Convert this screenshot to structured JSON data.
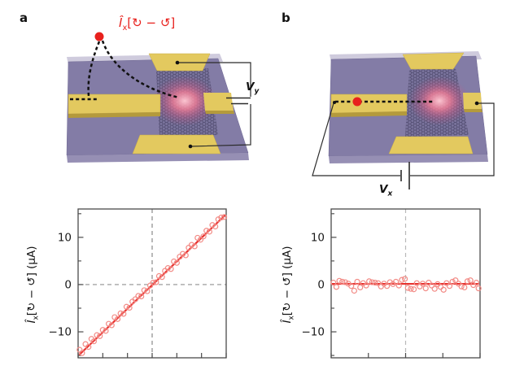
{
  "figure": {
    "panels": {
      "a": {
        "label": "a",
        "beam_label": {
          "prefix": "Î",
          "sub": "x",
          "rest": "[↻ − ↺]"
        },
        "voltage_label": {
          "prefix": "V",
          "sub": "y"
        }
      },
      "b": {
        "label": "b",
        "voltage_label": {
          "prefix": "V",
          "sub": "x"
        }
      }
    },
    "colors": {
      "substrate": "#837CA6",
      "substrate_back_edge": "#CFCBDD",
      "substrate_side": "#968FB4",
      "gold_electrode": "#E3C95F",
      "gold_edge": "#B49A3C",
      "lattice_line": "#332E4E",
      "glow_pink": "#F2708C",
      "laser_red": "#E8211D",
      "fit_line_red": "#E8312E",
      "point_red": "#F28B86",
      "dashed_guide_gray": "#909090",
      "wire_black": "#2b2b2b"
    }
  },
  "chart_data": [
    {
      "type": "scatter",
      "panel": "a",
      "title": "",
      "xlabel": "",
      "ylabel": "Î_x[↻ − ↺] (µA)",
      "ylabel_parts": {
        "prefix": "Î",
        "sub": "x",
        "rest": "[↻ − ↺] (µA)"
      },
      "xlim": [
        -15,
        15
      ],
      "ylim": [
        -15.5,
        16
      ],
      "x_ticks": [
        -15,
        -10,
        -5,
        0,
        5,
        10,
        15
      ],
      "y_ticks_major": [
        -10,
        0,
        10
      ],
      "y_ticks_minor": [
        -15,
        -5,
        5,
        15
      ],
      "grid": "off",
      "guides": {
        "vline_x": 0,
        "hline_y": 0
      },
      "fit_line": {
        "x": [
          -14.8,
          14.8
        ],
        "y": [
          -14.9,
          14.7
        ]
      },
      "points": {
        "x": [
          -14.7,
          -14.2,
          -13.5,
          -12.9,
          -12.3,
          -11.8,
          -11.2,
          -10.6,
          -10.0,
          -9.4,
          -8.8,
          -8.2,
          -7.6,
          -7.0,
          -6.4,
          -5.8,
          -5.2,
          -4.6,
          -4.0,
          -3.4,
          -2.8,
          -2.2,
          -1.6,
          -1.0,
          -0.4,
          0.2,
          0.8,
          1.4,
          2.0,
          2.6,
          3.2,
          3.8,
          4.4,
          5.0,
          5.6,
          6.2,
          6.8,
          7.4,
          8.0,
          8.6,
          9.2,
          9.8,
          10.4,
          11.0,
          11.6,
          12.2,
          12.8,
          13.4,
          14.0,
          14.6
        ],
        "y": [
          -13.8,
          -14.5,
          -12.6,
          -13.2,
          -11.5,
          -12.0,
          -10.7,
          -10.9,
          -9.6,
          -9.8,
          -8.3,
          -8.6,
          -6.9,
          -7.3,
          -6.1,
          -6.2,
          -4.7,
          -4.9,
          -3.6,
          -3.1,
          -2.4,
          -2.5,
          -1.2,
          -1.4,
          -0.2,
          0.4,
          0.5,
          1.8,
          1.6,
          2.9,
          3.5,
          3.3,
          4.9,
          4.6,
          5.9,
          6.5,
          6.2,
          7.8,
          8.4,
          8.1,
          9.9,
          9.5,
          10.2,
          11.4,
          11.2,
          12.6,
          12.3,
          13.8,
          14.2,
          14.3
        ]
      }
    },
    {
      "type": "scatter",
      "panel": "b",
      "title": "",
      "xlabel": "",
      "ylabel": "Î_x[↻ − ↺] (µA)",
      "ylabel_parts": {
        "prefix": "Î",
        "sub": "x",
        "rest": "[↻ − ↺] (µA)"
      },
      "xlim": [
        -10,
        10
      ],
      "ylim": [
        -15.5,
        16
      ],
      "x_ticks": [
        -10,
        -5,
        0,
        5,
        10
      ],
      "y_ticks_major": [
        -10,
        0,
        10
      ],
      "y_ticks_minor": [
        -15,
        -5,
        5,
        15
      ],
      "grid": "off",
      "guides": {
        "vline_x": 0,
        "hline_y": null
      },
      "fit_line": {
        "x": [
          -9.9,
          9.9
        ],
        "y": [
          0.15,
          0.15
        ]
      },
      "points": {
        "x": [
          -9.7,
          -9.3,
          -8.9,
          -8.5,
          -8.1,
          -7.7,
          -7.3,
          -6.9,
          -6.5,
          -6.1,
          -5.7,
          -5.3,
          -4.9,
          -4.5,
          -4.1,
          -3.7,
          -3.3,
          -2.9,
          -2.5,
          -2.1,
          -1.7,
          -1.3,
          -0.9,
          -0.5,
          -0.1,
          0.3,
          0.7,
          1.1,
          1.5,
          1.9,
          2.3,
          2.7,
          3.1,
          3.5,
          3.9,
          4.3,
          4.7,
          5.1,
          5.5,
          5.9,
          6.3,
          6.7,
          7.1,
          7.5,
          7.9,
          8.3,
          8.7,
          9.1,
          9.5,
          9.8
        ],
        "y": [
          0.4,
          -0.5,
          0.8,
          0.6,
          0.5,
          0.2,
          -0.3,
          -1.3,
          0.6,
          -0.6,
          0.3,
          -0.2,
          0.7,
          0.5,
          0.4,
          0.3,
          -0.4,
          0.2,
          -0.3,
          0.5,
          0.1,
          0.6,
          -0.2,
          1.0,
          1.2,
          -0.7,
          -0.9,
          -1.0,
          0.3,
          -0.4,
          0.2,
          -0.8,
          0.4,
          -0.2,
          -0.9,
          0.1,
          -0.5,
          -1.1,
          0.3,
          -0.3,
          0.6,
          0.9,
          0.2,
          -0.4,
          -0.6,
          0.7,
          0.9,
          -0.1,
          0.4,
          -0.8
        ]
      }
    }
  ]
}
